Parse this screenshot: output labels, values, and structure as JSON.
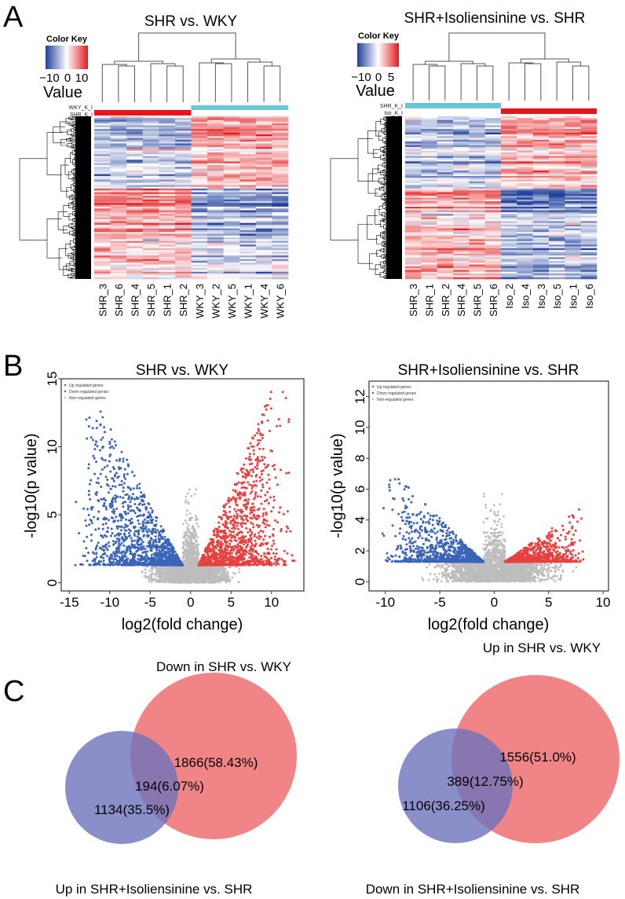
{
  "panels": {
    "a": "A",
    "b": "B",
    "c": "C"
  },
  "colors": {
    "up": "#e8403f",
    "down": "#3b64b8",
    "non": "#bdbdbd",
    "high": "#e31a1c",
    "low": "#1f3f9a",
    "group_cyan": "#6cc7d4",
    "group_red": "#e8141c",
    "venn_blue": "#7f83c4",
    "venn_red": "#ee6f72"
  },
  "chart_data": [
    {
      "type": "heatmap",
      "title": "SHR vs. WKY",
      "color_key": {
        "label": "Color Key",
        "value_label": "Value",
        "ticks": [
          "−10",
          "0",
          "10"
        ],
        "range": [
          -14,
          14
        ]
      },
      "group_labels": [
        "WKY_K_I",
        "SHR_K_I"
      ],
      "samples": [
        "SHR_3",
        "SHR_6",
        "SHR_4",
        "SHR_5",
        "SHR_1",
        "SHR_2",
        "WKY_3",
        "WKY_2",
        "WKY_5",
        "WKY_1",
        "WKY_4",
        "WKY_6"
      ],
      "sample_groups": [
        "SHR",
        "SHR",
        "SHR",
        "SHR",
        "SHR",
        "SHR",
        "WKY",
        "WKY",
        "WKY",
        "WKY",
        "WKY",
        "WKY"
      ],
      "row_blocks": [
        {
          "rows": 18,
          "means": [
            -0.35,
            0.45
          ]
        },
        {
          "rows": 22,
          "means": [
            -0.25,
            0.35
          ]
        },
        {
          "rows": 14,
          "means": [
            0.45,
            -0.5
          ]
        },
        {
          "rows": 20,
          "means": [
            0.3,
            -0.3
          ]
        },
        {
          "rows": 16,
          "means": [
            0.2,
            -0.15
          ]
        }
      ]
    },
    {
      "type": "heatmap",
      "title": "SHR+Isoliensinine vs. SHR",
      "color_key": {
        "label": "Color Key",
        "value_label": "Value",
        "ticks": [
          "−10",
          "0",
          "5"
        ],
        "range": [
          -12,
          8
        ]
      },
      "group_labels": [
        "SHR_K_I",
        "Iso_K_I"
      ],
      "samples": [
        "SHR_3",
        "SHR_1",
        "SHR_2",
        "SHR_4",
        "SHR_5",
        "SHR_6",
        "Iso_2",
        "Iso_4",
        "Iso_3",
        "Iso_5",
        "Iso_1",
        "Iso_6"
      ],
      "sample_groups": [
        "SHR",
        "SHR",
        "SHR",
        "SHR",
        "SHR",
        "SHR",
        "Iso",
        "Iso",
        "Iso",
        "Iso",
        "Iso",
        "Iso"
      ],
      "row_blocks": [
        {
          "rows": 20,
          "means": [
            -0.3,
            0.35
          ]
        },
        {
          "rows": 20,
          "means": [
            -0.25,
            0.25
          ]
        },
        {
          "rows": 16,
          "means": [
            0.3,
            -0.55
          ]
        },
        {
          "rows": 14,
          "means": [
            0.15,
            -0.2
          ]
        },
        {
          "rows": 20,
          "means": [
            0.3,
            -0.35
          ]
        }
      ]
    },
    {
      "type": "scatter",
      "title": "SHR vs. WKY",
      "xlabel": "log2(fold change)",
      "ylabel": "-log10(p value)",
      "xlim": [
        -16,
        14
      ],
      "ylim": [
        -0.6,
        15
      ],
      "xticks": [
        "-15",
        "-10",
        "-5",
        "0",
        "5",
        "10"
      ],
      "xtick_values": [
        -15,
        -10,
        -5,
        0,
        5,
        10
      ],
      "yticks": [
        "0",
        "5",
        "10",
        "15"
      ],
      "ytick_values": [
        0,
        5,
        10,
        15
      ],
      "legend": [
        "Up regulated genes",
        "Down regulated genes",
        "Non-regulated genes"
      ],
      "legend_position": "top-left",
      "thresholds": {
        "log2fc": 1,
        "neg_log10_p": 1.3
      },
      "series": [
        {
          "name": "Up regulated genes",
          "count": 1400,
          "x_range": [
            1,
            13
          ],
          "y_max": 14.5
        },
        {
          "name": "Down regulated genes",
          "count": 1400,
          "x_range": [
            -14.5,
            -1
          ],
          "y_max": 13
        },
        {
          "name": "Non-regulated genes",
          "count": 2200,
          "x_range": [
            -6,
            6
          ],
          "y_max": 7
        }
      ]
    },
    {
      "type": "scatter",
      "title": "SHR+Isoliensinine vs. SHR",
      "xlabel": "log2(fold change)",
      "ylabel": "-log10(p value)",
      "xlim": [
        -11.5,
        10.5
      ],
      "ylim": [
        -0.6,
        13
      ],
      "xticks": [
        "-10",
        "-5",
        "0",
        "5",
        "10"
      ],
      "xtick_values": [
        -10,
        -5,
        0,
        5,
        10
      ],
      "yticks": [
        "0",
        "2",
        "4",
        "6",
        "8",
        "10",
        "12"
      ],
      "ytick_values": [
        0,
        2,
        4,
        6,
        8,
        10,
        12
      ],
      "legend": [
        "Up regulated genes",
        "Down regulated genes",
        "Non-regulated genes"
      ],
      "legend_position": "top-left",
      "thresholds": {
        "log2fc": 1,
        "neg_log10_p": 1.3
      },
      "series": [
        {
          "name": "Up regulated genes",
          "count": 1100,
          "x_range": [
            1,
            8.5
          ],
          "y_max": 5.5
        },
        {
          "name": "Down regulated genes",
          "count": 1200,
          "x_range": [
            -10.5,
            -1
          ],
          "y_max": 8.7
        },
        {
          "name": "Non-regulated genes",
          "count": 2400,
          "x_range": [
            -8,
            8
          ],
          "y_max": 6.5
        }
      ]
    },
    {
      "type": "venn",
      "sets": [
        "Up in SHR+Isoliensinine vs. SHR",
        "Down in SHR vs. WKY"
      ],
      "regions": {
        "left_only": "1134(35.5%)",
        "overlap": "194(6.07%)",
        "right_only": "1866(58.43%)"
      }
    },
    {
      "type": "venn",
      "sets": [
        "Down in SHR+Isoliensinine vs. SHR",
        "Up in SHR vs. WKY"
      ],
      "regions": {
        "left_only": "1106(36.25%)",
        "overlap": "389(12.75%)",
        "right_only": "1556(51.0%)"
      }
    }
  ]
}
